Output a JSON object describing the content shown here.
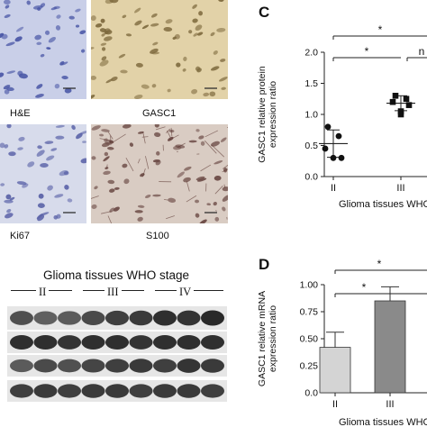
{
  "panels": {
    "micrographs": [
      {
        "label": "H&E",
        "tint": "#c9cfe8",
        "nuclei": "#4a57a6"
      },
      {
        "label": "GASC1",
        "tint": "#e2d2a8",
        "nuclei": "#7e6a3e"
      },
      {
        "label": "Ki67",
        "tint": "#d7dbeb",
        "nuclei": "#5b63a8"
      },
      {
        "label": "S100",
        "tint": "#d9ccc3",
        "nuclei": "#6b4a45"
      }
    ],
    "blot": {
      "title": "Glioma tissues WHO stage",
      "stages": [
        "II",
        "III",
        "IV"
      ]
    },
    "C": {
      "letter": "C"
    },
    "D": {
      "letter": "D"
    }
  },
  "chart_data": [
    {
      "panel": "C",
      "type": "scatter",
      "ylabel": "GASC1 relative protein expression ratio",
      "xlabel": "Glioma tissues WHO",
      "categories": [
        "II",
        "III"
      ],
      "ylim": [
        0,
        2.0
      ],
      "yticks": [
        "0.0",
        "0.5",
        "1.0",
        "1.5",
        "2.0"
      ],
      "series": [
        {
          "category": "II",
          "points": [
            0.8,
            0.65,
            0.45,
            0.3,
            0.3
          ],
          "mean": 0.53,
          "sd": 0.22
        },
        {
          "category": "III",
          "points": [
            1.3,
            1.25,
            1.2,
            1.15,
            1.05,
            1.0
          ],
          "mean": 1.18,
          "sd": 0.12
        }
      ],
      "significance": [
        "*",
        "*",
        "n"
      ]
    },
    {
      "panel": "D",
      "type": "bar",
      "ylabel": "GASC1 relative mRNA expression ratio",
      "xlabel": "Glioma tissues WHO",
      "categories": [
        "II",
        "III"
      ],
      "ylim": [
        0,
        1.0
      ],
      "yticks": [
        "0.0",
        "0.25",
        "0.50",
        "0.75",
        "1.00"
      ],
      "values": [
        0.42,
        0.85
      ],
      "errors": [
        0.14,
        0.13
      ],
      "colors": [
        "#d4d4d4",
        "#8a8a8a"
      ],
      "significance": [
        "*",
        "*"
      ]
    }
  ]
}
